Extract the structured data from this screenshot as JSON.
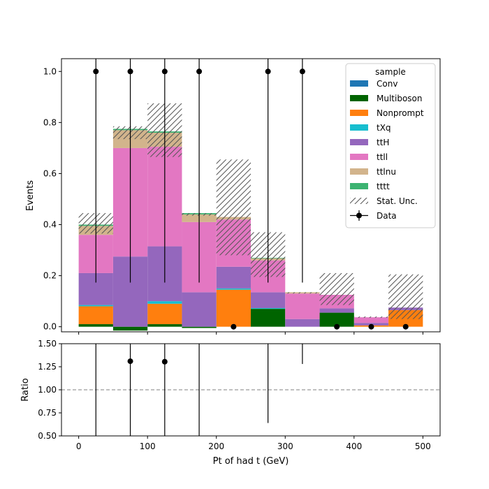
{
  "chart_data": {
    "type": "bar",
    "stacked": true,
    "xlabel": "Pt of had t (GeV)",
    "bin_edges": [
      0,
      50,
      100,
      150,
      200,
      250,
      300,
      350,
      400,
      450,
      500
    ],
    "colors": {
      "Conv": "#1f77b4",
      "Multiboson": "#006400",
      "Nonprompt": "#ff7f0e",
      "tXq": "#17becf",
      "ttH": "#9467bd",
      "ttll": "#e377c2",
      "ttlnu": "#d2b48c",
      "tttt": "#3cb371"
    },
    "legend": {
      "title": "sample",
      "placement": "upper right",
      "stat_label": "Stat. Unc.",
      "data_label": "Data"
    },
    "series": [
      {
        "name": "Conv",
        "values": [
          0.0,
          0.0,
          0.0,
          0.0,
          0.0,
          0.0,
          0.0,
          0.0,
          0.0,
          0.0
        ]
      },
      {
        "name": "Multiboson",
        "values": [
          0.01,
          -0.015,
          0.01,
          -0.005,
          0.0,
          0.07,
          0.0,
          0.055,
          0.0,
          0.0
        ]
      },
      {
        "name": "Nonprompt",
        "values": [
          0.07,
          0.0,
          0.08,
          0.0,
          0.145,
          0.0,
          0.0,
          0.0,
          0.005,
          0.065
        ]
      },
      {
        "name": "tXq",
        "values": [
          0.005,
          0.0,
          0.01,
          0.0,
          0.005,
          0.003,
          0.0,
          0.0,
          0.0,
          0.0
        ]
      },
      {
        "name": "ttH",
        "values": [
          0.125,
          0.275,
          0.215,
          0.135,
          0.085,
          0.062,
          0.03,
          0.017,
          0.01,
          0.01
        ]
      },
      {
        "name": "ttll",
        "values": [
          0.15,
          0.425,
          0.39,
          0.275,
          0.185,
          0.125,
          0.1,
          0.053,
          0.022,
          0.0
        ]
      },
      {
        "name": "ttlnu",
        "values": [
          0.035,
          0.07,
          0.055,
          0.03,
          0.01,
          0.008,
          0.005,
          0.0,
          0.0,
          0.0
        ]
      },
      {
        "name": "tttt",
        "values": [
          0.005,
          0.005,
          0.005,
          0.005,
          0.0,
          0.002,
          0.0,
          0.0,
          0.0,
          0.0
        ]
      }
    ],
    "stat_unc": [
      [
        0.365,
        0.445
      ],
      [
        0.735,
        0.785
      ],
      [
        0.665,
        0.875
      ],
      [
        0.435,
        0.445
      ],
      [
        0.28,
        0.655
      ],
      [
        0.195,
        0.37
      ],
      [
        0.13,
        0.135
      ],
      [
        0.085,
        0.21
      ],
      [
        0.035,
        0.04
      ],
      [
        0.03,
        0.205
      ]
    ],
    "data": {
      "x": [
        25,
        75,
        125,
        175,
        225,
        275,
        325,
        375,
        425,
        475
      ],
      "y": [
        1,
        1,
        1,
        1,
        0,
        1,
        1,
        0,
        0,
        0
      ],
      "err_low": [
        0.827,
        0.827,
        0.827,
        0.827,
        0,
        0.827,
        0.827,
        0,
        0,
        0
      ],
      "err_high": [
        2.3,
        2.3,
        2.3,
        2.3,
        0,
        2.3,
        2.3,
        0,
        0,
        0
      ]
    },
    "main": {
      "ylabel": "Events",
      "ylim": [
        -0.02,
        1.05
      ],
      "yticks": [
        0.0,
        0.2,
        0.4,
        0.6,
        0.8,
        1.0
      ],
      "ytick_labels": [
        "0.0",
        "0.2",
        "0.4",
        "0.6",
        "0.8",
        "1.0"
      ]
    },
    "ratio": {
      "ylabel": "Ratio",
      "ylim": [
        0.5,
        1.5
      ],
      "yticks": [
        0.5,
        0.75,
        1.0,
        1.25,
        1.5
      ],
      "ytick_labels": [
        "0.50",
        "0.75",
        "1.00",
        "1.25",
        "1.50"
      ],
      "reference_line": 1.0,
      "points": [
        {
          "x": 25,
          "y": null,
          "low": 0.0,
          "high": 1.5
        },
        {
          "x": 75,
          "y": 1.31,
          "low": 0.0,
          "high": 1.5
        },
        {
          "x": 125,
          "y": 1.305,
          "low": 0.0,
          "high": 1.5
        },
        {
          "x": 175,
          "y": null,
          "low": 0.0,
          "high": 1.5
        },
        {
          "x": 225,
          "y": null,
          "low": null,
          "high": null
        },
        {
          "x": 275,
          "y": null,
          "low": 0.64,
          "high": 1.5
        },
        {
          "x": 325,
          "y": null,
          "low": 1.28,
          "high": 1.5
        },
        {
          "x": 375,
          "y": null,
          "low": null,
          "high": null
        },
        {
          "x": 425,
          "y": null,
          "low": null,
          "high": null
        },
        {
          "x": 475,
          "y": null,
          "low": null,
          "high": null
        }
      ]
    },
    "xlim": [
      -25,
      525
    ],
    "xticks": [
      0,
      100,
      200,
      300,
      400,
      500
    ],
    "xtick_labels": [
      "0",
      "100",
      "200",
      "300",
      "400",
      "500"
    ]
  }
}
